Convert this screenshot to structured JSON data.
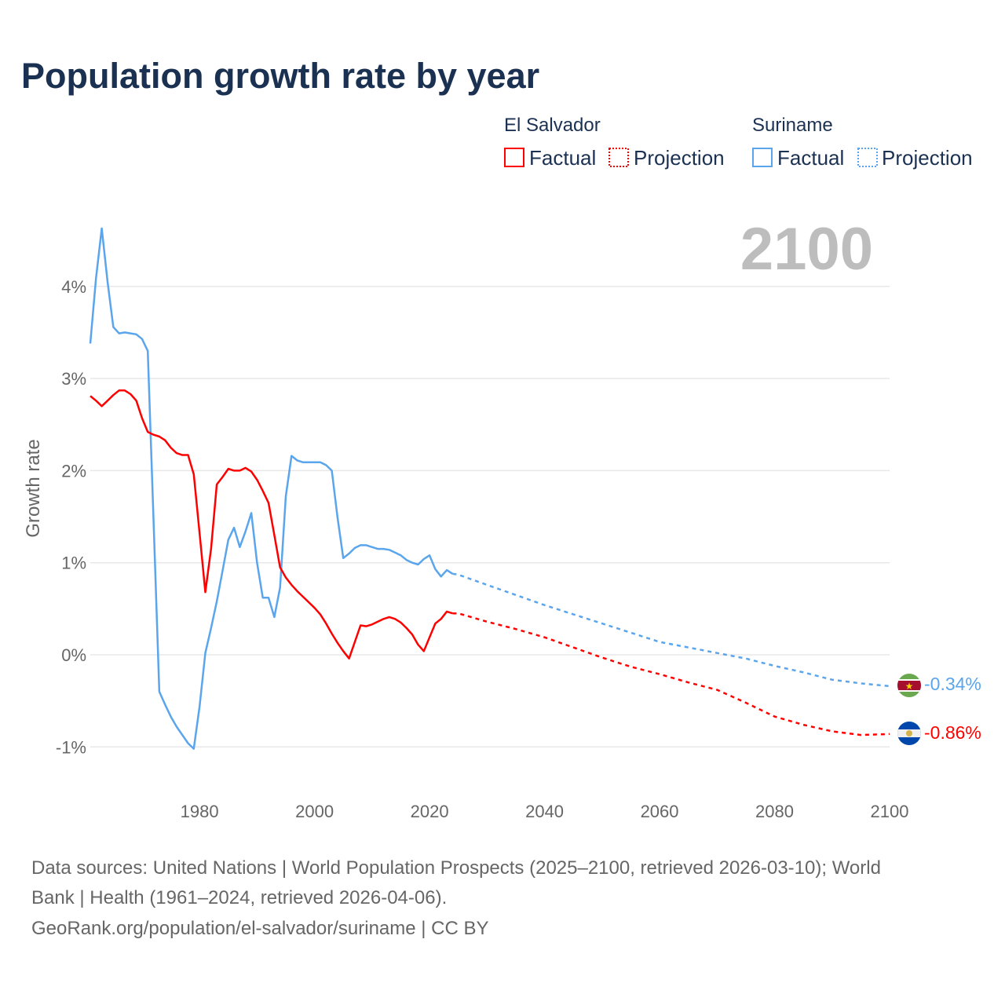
{
  "chart_data": {
    "type": "line",
    "title": "Population growth rate by year",
    "ylabel": "Growth rate",
    "xlabel": "",
    "xlim": [
      1961,
      2100
    ],
    "ylim": [
      -1.3,
      4.8
    ],
    "x_ticks": [
      1980,
      2000,
      2020,
      2040,
      2060,
      2080,
      2100
    ],
    "x_tick_labels": [
      "1980",
      "2000",
      "2020",
      "2040",
      "2060",
      "2080",
      "2100"
    ],
    "y_ticks": [
      -1,
      0,
      1,
      2,
      3,
      4
    ],
    "y_tick_labels": [
      "-1%",
      "0%",
      "1%",
      "2%",
      "3%",
      "4%"
    ],
    "grid": true,
    "current_year": "2100",
    "legend": {
      "placement": "top-right",
      "groups": [
        {
          "name": "El Salvador",
          "items": [
            "Factual",
            "Projection"
          ]
        },
        {
          "name": "Suriname",
          "items": [
            "Factual",
            "Projection"
          ]
        }
      ]
    },
    "series": [
      {
        "name": "El Salvador",
        "color": "#ff0000",
        "end_label": "-0.86%",
        "flag": "el-salvador-flag",
        "factual": {
          "years": [
            1961,
            1962,
            1963,
            1964,
            1965,
            1966,
            1967,
            1968,
            1969,
            1970,
            1971,
            1972,
            1973,
            1974,
            1975,
            1976,
            1977,
            1978,
            1979,
            1980,
            1981,
            1982,
            1983,
            1984,
            1985,
            1986,
            1987,
            1988,
            1989,
            1990,
            1991,
            1992,
            1993,
            1994,
            1995,
            1996,
            1997,
            1998,
            1999,
            2000,
            2001,
            2002,
            2003,
            2004,
            2005,
            2006,
            2007,
            2008,
            2009,
            2010,
            2011,
            2012,
            2013,
            2014,
            2015,
            2016,
            2017,
            2018,
            2019,
            2020,
            2021,
            2022,
            2023,
            2024
          ],
          "values": [
            2.81,
            2.76,
            2.7,
            2.76,
            2.82,
            2.87,
            2.87,
            2.83,
            2.76,
            2.57,
            2.42,
            2.39,
            2.37,
            2.33,
            2.25,
            2.19,
            2.17,
            2.17,
            1.96,
            1.32,
            0.68,
            1.15,
            1.85,
            1.93,
            2.02,
            2.0,
            2.0,
            2.03,
            1.99,
            1.9,
            1.78,
            1.65,
            1.3,
            0.95,
            0.84,
            0.76,
            0.69,
            0.63,
            0.57,
            0.51,
            0.44,
            0.34,
            0.23,
            0.13,
            0.04,
            -0.04,
            0.14,
            0.32,
            0.31,
            0.33,
            0.36,
            0.39,
            0.41,
            0.39,
            0.35,
            0.29,
            0.22,
            0.11,
            0.04,
            0.19,
            0.34,
            0.39,
            0.47,
            0.45
          ]
        },
        "projection": {
          "years": [
            2024,
            2025,
            2030,
            2035,
            2040,
            2045,
            2050,
            2055,
            2060,
            2065,
            2070,
            2075,
            2080,
            2085,
            2090,
            2095,
            2100
          ],
          "values": [
            0.45,
            0.45,
            0.36,
            0.28,
            0.19,
            0.08,
            -0.03,
            -0.13,
            -0.21,
            -0.3,
            -0.38,
            -0.52,
            -0.67,
            -0.76,
            -0.83,
            -0.87,
            -0.86
          ]
        }
      },
      {
        "name": "Suriname",
        "color": "#5aa5ec",
        "end_label": "-0.34%",
        "flag": "suriname-flag",
        "factual": {
          "years": [
            1961,
            1962,
            1963,
            1964,
            1965,
            1966,
            1967,
            1968,
            1969,
            1970,
            1971,
            1972,
            1973,
            1974,
            1975,
            1976,
            1977,
            1978,
            1979,
            1980,
            1981,
            1982,
            1983,
            1984,
            1985,
            1986,
            1987,
            1988,
            1989,
            1990,
            1991,
            1992,
            1993,
            1994,
            1995,
            1996,
            1997,
            1998,
            1999,
            2000,
            2001,
            2002,
            2003,
            2004,
            2005,
            2006,
            2007,
            2008,
            2009,
            2010,
            2011,
            2012,
            2013,
            2014,
            2015,
            2016,
            2017,
            2018,
            2019,
            2020,
            2021,
            2022,
            2023,
            2024
          ],
          "values": [
            3.38,
            4.09,
            4.63,
            4.05,
            3.56,
            3.49,
            3.5,
            3.49,
            3.48,
            3.43,
            3.3,
            1.45,
            -0.4,
            -0.54,
            -0.67,
            -0.78,
            -0.87,
            -0.96,
            -1.02,
            -0.56,
            0.02,
            0.29,
            0.58,
            0.91,
            1.25,
            1.38,
            1.17,
            1.34,
            1.54,
            1.0,
            0.62,
            0.62,
            0.41,
            0.73,
            1.72,
            2.16,
            2.11,
            2.09,
            2.09,
            2.09,
            2.09,
            2.06,
            2.0,
            1.49,
            1.05,
            1.1,
            1.16,
            1.19,
            1.19,
            1.17,
            1.15,
            1.15,
            1.14,
            1.11,
            1.08,
            1.03,
            1.0,
            0.98,
            1.04,
            1.08,
            0.93,
            0.85,
            0.92,
            0.88
          ]
        },
        "projection": {
          "years": [
            2024,
            2025,
            2030,
            2035,
            2040,
            2045,
            2050,
            2055,
            2060,
            2065,
            2070,
            2075,
            2080,
            2085,
            2090,
            2095,
            2100
          ],
          "values": [
            0.88,
            0.87,
            0.76,
            0.65,
            0.54,
            0.44,
            0.34,
            0.24,
            0.14,
            0.08,
            0.02,
            -0.04,
            -0.12,
            -0.19,
            -0.27,
            -0.31,
            -0.34
          ]
        }
      }
    ]
  },
  "footer": {
    "line1": "Data sources: United Nations | World Population Prospects (2025–2100, retrieved 2026-03-10); World",
    "line2": "Bank | Health (1961–2024, retrieved 2026-04-06).",
    "line3": "GeoRank.org/population/el-salvador/suriname | CC BY"
  }
}
